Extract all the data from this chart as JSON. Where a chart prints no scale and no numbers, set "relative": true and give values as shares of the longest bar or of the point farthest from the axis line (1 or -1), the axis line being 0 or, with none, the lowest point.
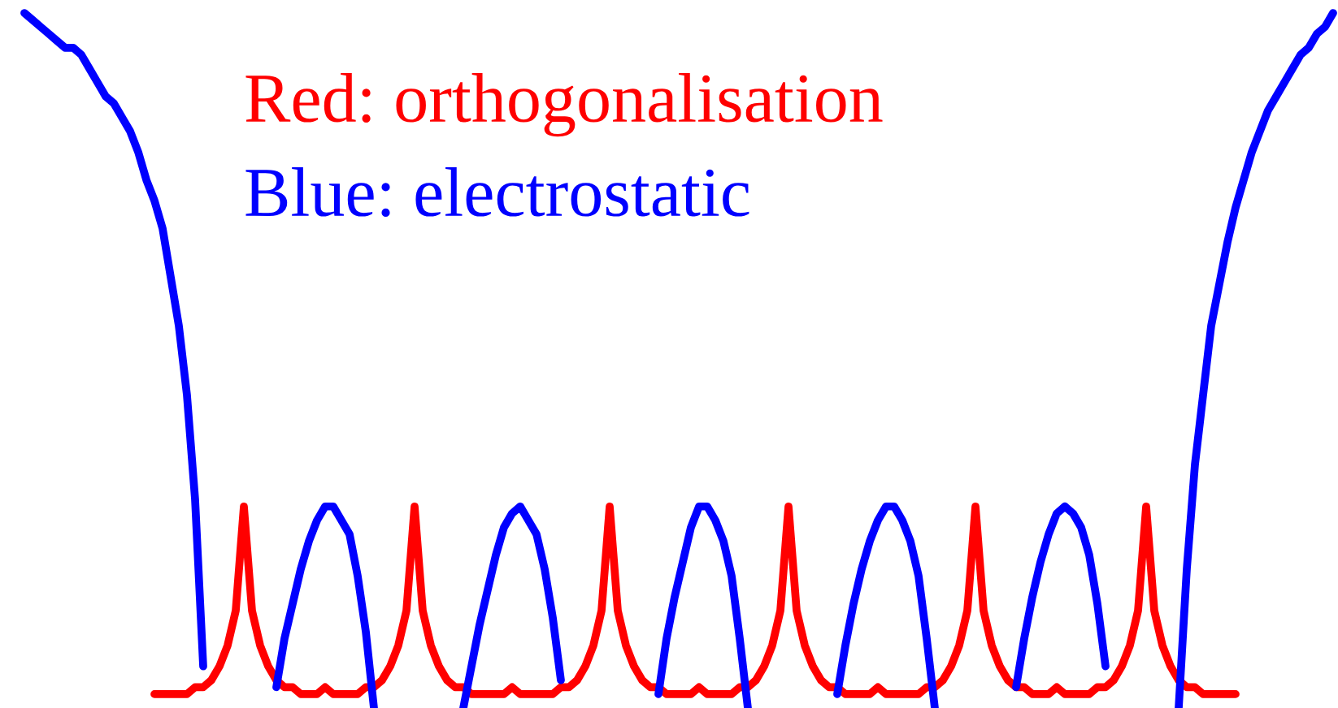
{
  "chart_data": {
    "type": "line",
    "relative": true,
    "line_style": "solid",
    "marker": "none",
    "categories": [
      null,
      null,
      null,
      null,
      null,
      null,
      null,
      null,
      null,
      null,
      null,
      null,
      null,
      null,
      null,
      null,
      null,
      null,
      null,
      null,
      null,
      null,
      null,
      null,
      null,
      null,
      null,
      null,
      null,
      null,
      null,
      null,
      null,
      null,
      null,
      null,
      null,
      null,
      null,
      null,
      null,
      null,
      null,
      null,
      null,
      null,
      null,
      null,
      null,
      null,
      null,
      null,
      null,
      null,
      null,
      null,
      null,
      null,
      null,
      null,
      null,
      null,
      null,
      null,
      null,
      null,
      null,
      null,
      null,
      null,
      null,
      null,
      null,
      null,
      null,
      null,
      null,
      null,
      null,
      null,
      null,
      null,
      null,
      null,
      null,
      null,
      null,
      null,
      null,
      null,
      null,
      null,
      null,
      null,
      null,
      null,
      null,
      null,
      null,
      null,
      null,
      null,
      null,
      null,
      null,
      null,
      null,
      null,
      null,
      null,
      null,
      null,
      null,
      null,
      null,
      null,
      null,
      null,
      null,
      null,
      null,
      null,
      null,
      null,
      null,
      null,
      null,
      null,
      null,
      null,
      null,
      null,
      null,
      null,
      null,
      null,
      null,
      null,
      null,
      null,
      null,
      null,
      null,
      null,
      null,
      null,
      null,
      null,
      null,
      null,
      null,
      null,
      null,
      null,
      null,
      null,
      null,
      null,
      null,
      null,
      null,
      null
    ],
    "series": [
      {
        "name": "Red: orthogonalisation",
        "color": "#ff0000",
        "values": [
          null,
          null,
          null,
          null,
          null,
          null,
          null,
          null,
          null,
          null,
          null,
          null,
          null,
          null,
          null,
          null,
          0.02,
          0.02,
          0.02,
          0.02,
          0.02,
          0.03,
          0.03,
          0.04,
          0.06,
          0.09,
          0.14,
          0.29,
          0.14,
          0.09,
          0.06,
          0.04,
          0.03,
          0.03,
          0.02,
          0.02,
          0.02,
          0.03,
          0.02,
          0.02,
          0.02,
          0.02,
          0.03,
          0.03,
          0.04,
          0.06,
          0.09,
          0.14,
          0.29,
          0.14,
          0.09,
          0.06,
          0.04,
          0.03,
          0.03,
          0.02,
          0.02,
          0.02,
          0.02,
          0.02,
          0.03,
          0.02,
          0.02,
          0.02,
          0.02,
          0.02,
          0.03,
          0.03,
          0.04,
          0.06,
          0.09,
          0.14,
          0.29,
          0.14,
          0.09,
          0.06,
          0.04,
          0.03,
          0.03,
          0.02,
          0.02,
          0.02,
          0.02,
          0.03,
          0.02,
          0.02,
          0.02,
          0.02,
          0.03,
          0.03,
          0.04,
          0.06,
          0.09,
          0.14,
          0.29,
          0.14,
          0.09,
          0.06,
          0.04,
          0.03,
          0.03,
          0.02,
          0.02,
          0.02,
          0.02,
          0.03,
          0.02,
          0.02,
          0.02,
          0.02,
          0.02,
          0.03,
          0.03,
          0.04,
          0.06,
          0.09,
          0.14,
          0.29,
          0.14,
          0.09,
          0.06,
          0.04,
          0.03,
          0.03,
          0.02,
          0.02,
          0.02,
          0.03,
          0.02,
          0.02,
          0.02,
          0.02,
          0.03,
          0.03,
          0.04,
          0.06,
          0.09,
          0.14,
          0.29,
          0.14,
          0.09,
          0.06,
          0.04,
          0.03,
          0.03,
          0.02,
          0.02,
          0.02,
          0.02,
          0.02,
          null,
          null,
          null,
          null,
          null,
          null,
          null,
          null,
          null,
          null,
          null,
          null
        ]
      },
      {
        "name": "Blue: electrostatic",
        "color": "#0000ff",
        "values": [
          1.0,
          0.99,
          0.98,
          0.97,
          0.96,
          0.95,
          0.95,
          0.94,
          0.92,
          0.9,
          0.88,
          0.87,
          0.85,
          0.83,
          0.8,
          0.76,
          0.73,
          0.69,
          0.62,
          0.55,
          0.45,
          0.3,
          0.06,
          null,
          null,
          null,
          null,
          null,
          null,
          null,
          null,
          0.03,
          0.1,
          0.15,
          0.2,
          0.24,
          0.27,
          0.29,
          0.29,
          0.27,
          0.25,
          0.19,
          0.11,
          0,
          null,
          null,
          null,
          null,
          null,
          null,
          null,
          null,
          null,
          null,
          0,
          0.06,
          0.12,
          0.17,
          0.22,
          0.26,
          0.28,
          0.29,
          0.27,
          0.25,
          0.2,
          0.13,
          0.04,
          null,
          null,
          null,
          null,
          null,
          null,
          null,
          null,
          null,
          null,
          null,
          0.02,
          0.1,
          0.16,
          0.21,
          0.26,
          0.29,
          0.29,
          0.27,
          0.24,
          0.19,
          0.1,
          0,
          null,
          null,
          null,
          null,
          null,
          null,
          null,
          null,
          null,
          null,
          0.02,
          0.09,
          0.15,
          0.2,
          0.24,
          0.27,
          0.29,
          0.29,
          0.27,
          0.24,
          0.19,
          0.1,
          0,
          null,
          null,
          null,
          null,
          null,
          null,
          null,
          null,
          null,
          0.03,
          0.1,
          0.16,
          0.21,
          0.25,
          0.28,
          0.29,
          0.28,
          0.26,
          0.22,
          0.15,
          0.06,
          null,
          null,
          null,
          null,
          null,
          null,
          null,
          null,
          0,
          0.2,
          0.35,
          0.45,
          0.55,
          0.61,
          0.67,
          0.72,
          0.76,
          0.8,
          0.83,
          0.86,
          0.88,
          0.9,
          0.92,
          0.94,
          0.95,
          0.97,
          0.98,
          1.0
        ]
      }
    ]
  }
}
